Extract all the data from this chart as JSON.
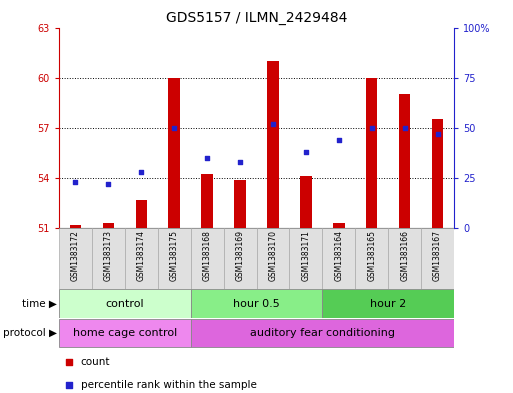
{
  "title": "GDS5157 / ILMN_2429484",
  "samples": [
    "GSM1383172",
    "GSM1383173",
    "GSM1383174",
    "GSM1383175",
    "GSM1383168",
    "GSM1383169",
    "GSM1383170",
    "GSM1383171",
    "GSM1383164",
    "GSM1383165",
    "GSM1383166",
    "GSM1383167"
  ],
  "bar_values": [
    51.2,
    51.3,
    52.7,
    60.0,
    54.2,
    53.9,
    61.0,
    54.1,
    51.3,
    60.0,
    59.0,
    57.5
  ],
  "dot_values": [
    23,
    22,
    28,
    50,
    35,
    33,
    52,
    38,
    44,
    50,
    50,
    47
  ],
  "bar_bottom": 51.0,
  "left_yticks": [
    51,
    54,
    57,
    60,
    63
  ],
  "right_yticks": [
    0,
    25,
    50,
    75,
    100
  ],
  "left_ylim": [
    51,
    63
  ],
  "right_ylim": [
    0,
    100
  ],
  "bar_color": "#cc0000",
  "dot_color": "#2222cc",
  "time_groups": [
    {
      "label": "control",
      "start": 0,
      "end": 4,
      "color": "#ccffcc"
    },
    {
      "label": "hour 0.5",
      "start": 4,
      "end": 8,
      "color": "#88ee88"
    },
    {
      "label": "hour 2",
      "start": 8,
      "end": 12,
      "color": "#55cc55"
    }
  ],
  "protocol_groups": [
    {
      "label": "home cage control",
      "start": 0,
      "end": 4,
      "color": "#ee88ee"
    },
    {
      "label": "auditory fear conditioning",
      "start": 4,
      "end": 12,
      "color": "#dd66dd"
    }
  ],
  "time_label": "time",
  "protocol_label": "protocol",
  "legend_count": "count",
  "legend_pct": "percentile rank within the sample",
  "title_fontsize": 10,
  "tick_fontsize": 7,
  "group_label_fontsize": 8,
  "sample_fontsize": 5.5
}
